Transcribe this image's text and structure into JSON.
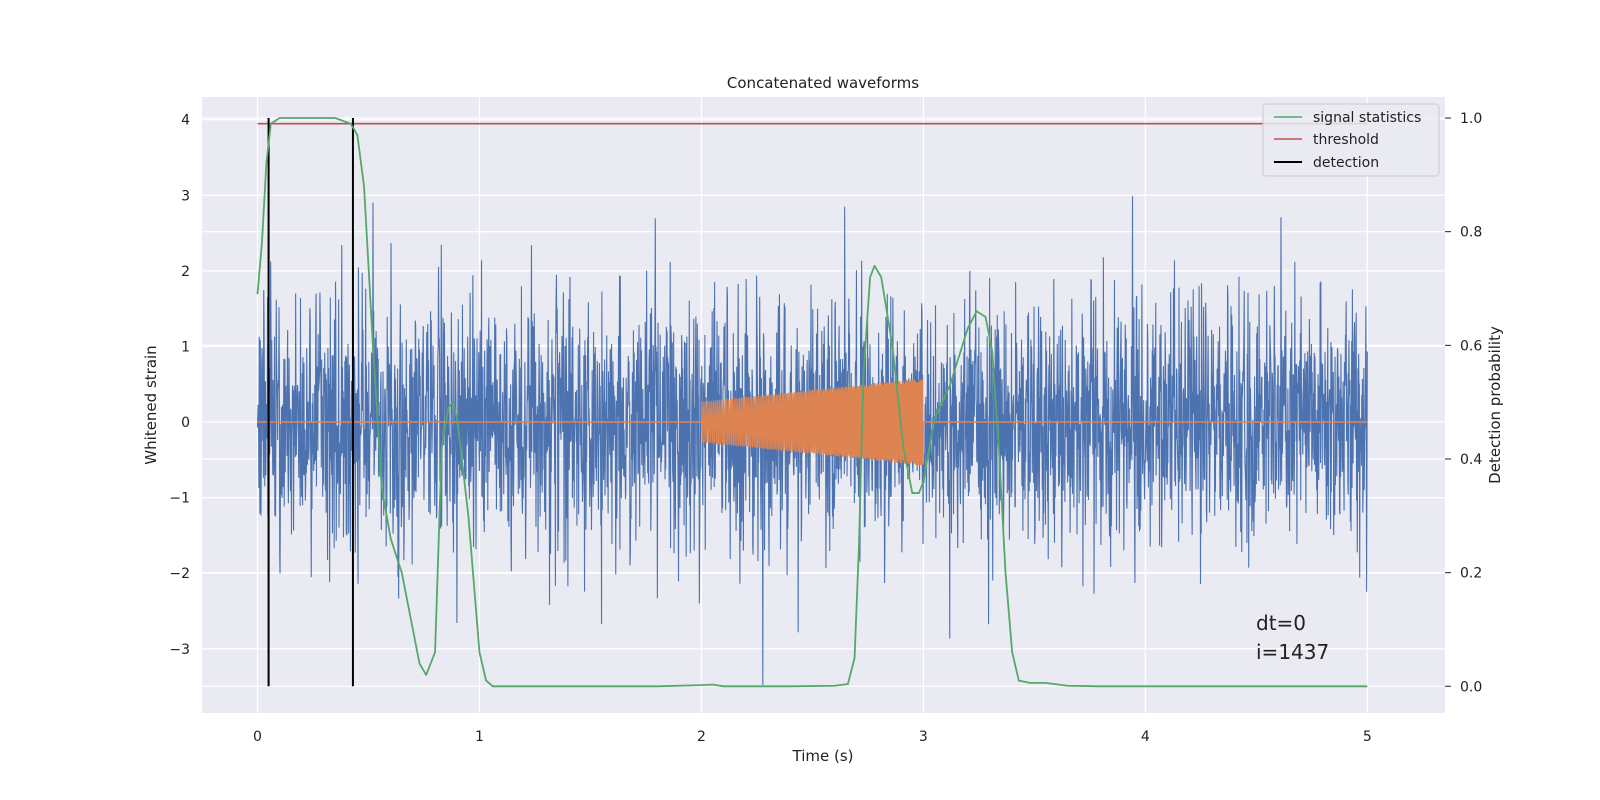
{
  "chart_data": {
    "type": "line",
    "title": "Concatenated waveforms",
    "xlabel": "Time (s)",
    "ylabel": "Whitened strain",
    "ylabel_right": "Detection probability",
    "xlim": [
      -0.25,
      5.35
    ],
    "ylim": [
      -3.85,
      4.3
    ],
    "ylim_right": [
      -0.047,
      1.037
    ],
    "x_ticks": [
      0,
      1,
      2,
      3,
      4,
      5
    ],
    "y_ticks": [
      -3,
      -2,
      -1,
      0,
      1,
      2,
      3,
      4
    ],
    "y_ticks_right": [
      0.0,
      0.2,
      0.4,
      0.6,
      0.8,
      1.0
    ],
    "x_tick_labels": [
      "0",
      "1",
      "2",
      "3",
      "4",
      "5"
    ],
    "y_tick_labels": [
      "−3",
      "−2",
      "−1",
      "0",
      "1",
      "2",
      "3",
      "4"
    ],
    "y_tick_labels_right": [
      "0.0",
      "0.2",
      "0.4",
      "0.6",
      "0.8",
      "1.0"
    ],
    "grid": true,
    "legend_position": "top-right",
    "colors": {
      "background": "#eaeaf2",
      "grid": "#ffffff",
      "noise": "#4c72b0",
      "waveform": "#dd8452",
      "signal_statistics": "#55a868",
      "threshold": "#c44e52",
      "detection": "#000000"
    },
    "legend": [
      {
        "label": "signal statistics",
        "color": "#55a868"
      },
      {
        "label": "threshold",
        "color": "#c44e52"
      },
      {
        "label": "detection",
        "color": "#000000"
      }
    ],
    "noise": {
      "x_range": [
        0,
        5
      ],
      "approx_std": 0.82,
      "approx_max": 3.95,
      "approx_min": -3.48
    },
    "waveform": {
      "x_range": [
        2.0,
        3.0
      ],
      "amplitude_start": 0.27,
      "amplitude_end": 0.58,
      "baseline": 0
    },
    "threshold_value": 0.99,
    "threshold_x_range": [
      0,
      5
    ],
    "detections_x": [
      0.05,
      0.43
    ],
    "signal_statistics": [
      [
        0.0,
        0.69
      ],
      [
        0.02,
        0.78
      ],
      [
        0.04,
        0.92
      ],
      [
        0.06,
        0.99
      ],
      [
        0.1,
        1.0
      ],
      [
        0.2,
        1.0
      ],
      [
        0.35,
        1.0
      ],
      [
        0.42,
        0.99
      ],
      [
        0.45,
        0.97
      ],
      [
        0.48,
        0.88
      ],
      [
        0.52,
        0.6
      ],
      [
        0.56,
        0.35
      ],
      [
        0.6,
        0.26
      ],
      [
        0.65,
        0.2
      ],
      [
        0.7,
        0.1
      ],
      [
        0.73,
        0.04
      ],
      [
        0.76,
        0.02
      ],
      [
        0.8,
        0.06
      ],
      [
        0.83,
        0.42
      ],
      [
        0.86,
        0.49
      ],
      [
        0.88,
        0.5
      ],
      [
        0.9,
        0.47
      ],
      [
        0.95,
        0.3
      ],
      [
        1.0,
        0.06
      ],
      [
        1.03,
        0.01
      ],
      [
        1.06,
        0.0
      ],
      [
        1.2,
        0.0
      ],
      [
        1.5,
        0.0
      ],
      [
        1.8,
        0.0
      ],
      [
        2.0,
        0.002
      ],
      [
        2.05,
        0.003
      ],
      [
        2.1,
        0.0
      ],
      [
        2.4,
        0.0
      ],
      [
        2.6,
        0.001
      ],
      [
        2.66,
        0.004
      ],
      [
        2.69,
        0.05
      ],
      [
        2.71,
        0.25
      ],
      [
        2.73,
        0.55
      ],
      [
        2.76,
        0.72
      ],
      [
        2.78,
        0.74
      ],
      [
        2.81,
        0.72
      ],
      [
        2.86,
        0.6
      ],
      [
        2.91,
        0.42
      ],
      [
        2.95,
        0.34
      ],
      [
        2.98,
        0.34
      ],
      [
        3.0,
        0.36
      ],
      [
        3.05,
        0.47
      ],
      [
        3.12,
        0.53
      ],
      [
        3.2,
        0.63
      ],
      [
        3.24,
        0.66
      ],
      [
        3.28,
        0.65
      ],
      [
        3.31,
        0.59
      ],
      [
        3.34,
        0.42
      ],
      [
        3.37,
        0.2
      ],
      [
        3.4,
        0.06
      ],
      [
        3.43,
        0.01
      ],
      [
        3.48,
        0.006
      ],
      [
        3.55,
        0.006
      ],
      [
        3.65,
        0.001
      ],
      [
        3.8,
        0.0
      ],
      [
        4.2,
        0.0
      ],
      [
        4.6,
        0.0
      ],
      [
        5.0,
        0.0
      ]
    ]
  },
  "annotation": {
    "line1": "dt=0",
    "line2": "i=1437"
  }
}
